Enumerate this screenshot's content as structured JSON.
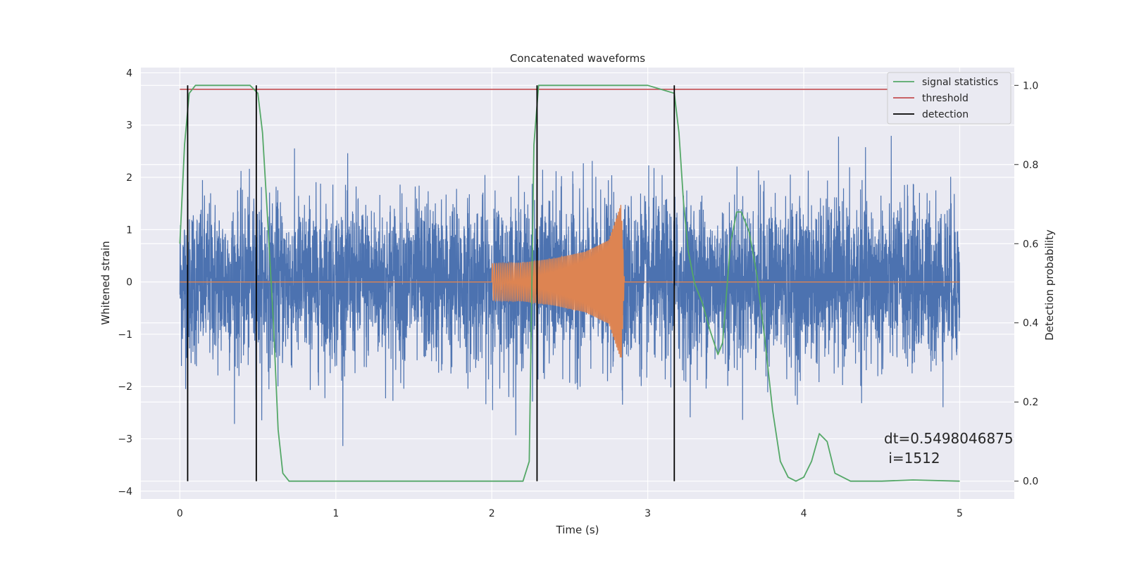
{
  "chart_data": {
    "type": "line",
    "title": "Concatenated waveforms",
    "xlabel": "Time (s)",
    "ylabel": "Whitened strain",
    "ylabel_right": "Detection probability",
    "xlim": [
      -0.25,
      5.35
    ],
    "ylim": [
      -4.15,
      4.1
    ],
    "ylim_right": [
      -0.045,
      1.045
    ],
    "x_ticks": [
      0,
      1,
      2,
      3,
      4,
      5
    ],
    "y_ticks": [
      -4,
      -3,
      -2,
      -1,
      0,
      1,
      2,
      3,
      4
    ],
    "y_ticks_right": [
      0.0,
      0.2,
      0.4,
      0.6,
      0.8,
      1.0
    ],
    "x_tick_labels": [
      "0",
      "1",
      "2",
      "3",
      "4",
      "5"
    ],
    "y_tick_labels": [
      "−4",
      "−3",
      "−2",
      "−1",
      "0",
      "1",
      "2",
      "3",
      "4"
    ],
    "y_tick_labels_right": [
      "0.0",
      "0.2",
      "0.4",
      "0.6",
      "0.8",
      "1.0"
    ],
    "grid": true,
    "legend_position": "top-right",
    "legend": [
      {
        "label": "signal statistics",
        "color": "#55a868"
      },
      {
        "label": "threshold",
        "color": "#c44e52"
      },
      {
        "label": "detection",
        "color": "#000000"
      }
    ],
    "series": [
      {
        "name": "whitened strain",
        "color": "#4c72b0",
        "axis": "left",
        "x_range": [
          0,
          5
        ],
        "amplitude_typical": 1.6,
        "max": 3.65,
        "min": -3.65
      },
      {
        "name": "injected waveform",
        "color": "#dd8452",
        "axis": "left",
        "x": [
          0,
          2.0,
          2.0,
          2.2,
          2.4,
          2.6,
          2.75,
          2.83,
          2.85,
          5.0
        ],
        "envelope": [
          0,
          0,
          0.35,
          0.37,
          0.45,
          0.58,
          0.8,
          1.5,
          0,
          0
        ]
      },
      {
        "name": "signal statistics",
        "color": "#55a868",
        "axis": "right",
        "x": [
          0.0,
          0.03,
          0.06,
          0.1,
          0.2,
          0.3,
          0.45,
          0.5,
          0.53,
          0.56,
          0.6,
          0.63,
          0.66,
          0.7,
          0.8,
          1.0,
          1.5,
          2.0,
          2.2,
          2.24,
          2.27,
          2.3,
          2.35,
          2.5,
          3.0,
          3.17,
          3.2,
          3.23,
          3.26,
          3.3,
          3.35,
          3.4,
          3.45,
          3.48,
          3.5,
          3.53,
          3.57,
          3.6,
          3.65,
          3.7,
          3.75,
          3.8,
          3.85,
          3.9,
          3.95,
          4.0,
          4.05,
          4.1,
          4.15,
          4.2,
          4.3,
          4.5,
          4.7,
          5.0
        ],
        "y": [
          0.6,
          0.85,
          0.98,
          1.0,
          1.0,
          1.0,
          1.0,
          0.98,
          0.88,
          0.68,
          0.4,
          0.13,
          0.02,
          0.0,
          0.0,
          0.0,
          0.0,
          0.0,
          0.0,
          0.05,
          0.85,
          1.0,
          1.0,
          1.0,
          1.0,
          0.98,
          0.88,
          0.7,
          0.58,
          0.5,
          0.45,
          0.38,
          0.32,
          0.35,
          0.45,
          0.6,
          0.68,
          0.68,
          0.63,
          0.52,
          0.36,
          0.18,
          0.05,
          0.01,
          0.0,
          0.01,
          0.05,
          0.12,
          0.1,
          0.02,
          0.0,
          0.0,
          0.003,
          0.0
        ]
      },
      {
        "name": "threshold",
        "color": "#c44e52",
        "axis": "right",
        "x": [
          0,
          5
        ],
        "y": [
          0.99,
          0.99
        ]
      }
    ],
    "detections": {
      "color": "#000000",
      "x": [
        0.05,
        0.49,
        2.29,
        3.17
      ],
      "y_range_right": [
        0.0,
        1.0
      ]
    },
    "annotation": {
      "line1": "dt=0.5498046875",
      "line2": " i=1512",
      "position_data": [
        4.5,
        -3.0
      ]
    }
  }
}
